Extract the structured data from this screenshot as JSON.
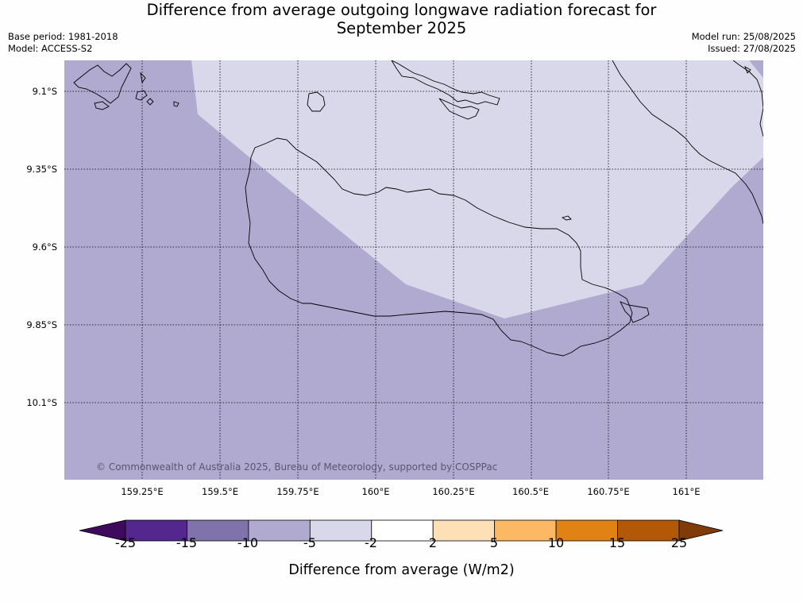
{
  "title_line1": "Difference from average outgoing longwave radiation forecast for",
  "title_line2": "September 2025",
  "base_period": "Base period: 1981-2018",
  "model": "Model: ACCESS-S2",
  "model_run": "Model run: 25/08/2025",
  "issued": "Issued: 27/08/2025",
  "copyright": "© Commonwealth of Australia 2025, Bureau of Meteorology, supported by COSPPac",
  "lat_labels": [
    "9.1°S",
    "9.35°S",
    "9.6°S",
    "9.85°S",
    "10.1°S"
  ],
  "lon_labels": [
    "159.25°E",
    "159.5°E",
    "159.75°E",
    "160°E",
    "160.25°E",
    "160.5°E",
    "160.75°E",
    "161°E"
  ],
  "colorbar": {
    "title": "Difference from average (W/m2)",
    "ticks": [
      "-25",
      "-15",
      "-10",
      "-5",
      "-2",
      "2",
      "5",
      "10",
      "15",
      "25"
    ],
    "colors": [
      "#3f0a5e",
      "#54278f",
      "#8073ac",
      "#b0aad1",
      "#d8d8ea",
      "#ffffff",
      "#fee0b6",
      "#fdb863",
      "#e08214",
      "#b35806",
      "#7f3b08"
    ]
  },
  "map_colors": {
    "light": "#d8d8ea",
    "medium": "#b0aad1",
    "coast": "#000000"
  }
}
